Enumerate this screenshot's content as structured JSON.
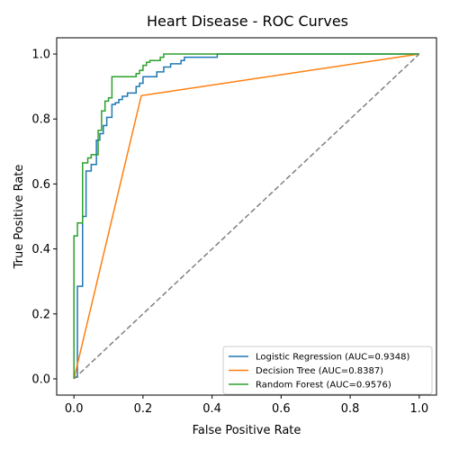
{
  "chart_data": {
    "type": "line",
    "title": "Heart Disease - ROC Curves",
    "xlabel": "False Positive Rate",
    "ylabel": "True Positive Rate",
    "xlim": [
      -0.05,
      1.05
    ],
    "ylim": [
      -0.05,
      1.05
    ],
    "xticks": [
      0.0,
      0.2,
      0.4,
      0.6,
      0.8,
      1.0
    ],
    "xtick_labels": [
      "0.0",
      "0.2",
      "0.4",
      "0.6",
      "0.8",
      "1.0"
    ],
    "yticks": [
      0.0,
      0.2,
      0.4,
      0.6,
      0.8,
      1.0
    ],
    "ytick_labels": [
      "0.0",
      "0.2",
      "0.4",
      "0.6",
      "0.8",
      "1.0"
    ],
    "grid": false,
    "legend_position": "lower-right",
    "series": [
      {
        "name": "Logistic Regression (AUC=0.9348)",
        "color": "#1f77b4",
        "x": [
          0,
          0,
          0.01,
          0.01,
          0.025,
          0.025,
          0.035,
          0.035,
          0.05,
          0.05,
          0.065,
          0.065,
          0.075,
          0.075,
          0.085,
          0.085,
          0.095,
          0.095,
          0.11,
          0.11,
          0.12,
          0.12,
          0.13,
          0.13,
          0.14,
          0.14,
          0.155,
          0.155,
          0.18,
          0.18,
          0.19,
          0.19,
          0.2,
          0.2,
          0.24,
          0.24,
          0.26,
          0.26,
          0.28,
          0.28,
          0.31,
          0.31,
          0.32,
          0.32,
          0.415,
          0.415,
          1.0
        ],
        "y": [
          0,
          0.005,
          0.005,
          0.285,
          0.285,
          0.5,
          0.5,
          0.64,
          0.64,
          0.66,
          0.66,
          0.735,
          0.735,
          0.755,
          0.755,
          0.78,
          0.78,
          0.805,
          0.805,
          0.845,
          0.845,
          0.85,
          0.85,
          0.86,
          0.86,
          0.87,
          0.87,
          0.88,
          0.88,
          0.9,
          0.9,
          0.91,
          0.91,
          0.93,
          0.93,
          0.945,
          0.945,
          0.96,
          0.96,
          0.97,
          0.97,
          0.98,
          0.98,
          0.99,
          0.99,
          1.0,
          1.0
        ]
      },
      {
        "name": "Decision Tree (AUC=0.8387)",
        "color": "#ff7f0e",
        "x": [
          0,
          0.195,
          1.0
        ],
        "y": [
          0,
          0.872,
          1.0
        ]
      },
      {
        "name": "Random Forest (AUC=0.9576)",
        "color": "#2ca02c",
        "x": [
          0,
          0,
          0.01,
          0.01,
          0.025,
          0.025,
          0.04,
          0.04,
          0.05,
          0.05,
          0.07,
          0.07,
          0.08,
          0.08,
          0.09,
          0.09,
          0.1,
          0.1,
          0.11,
          0.11,
          0.18,
          0.18,
          0.19,
          0.19,
          0.2,
          0.2,
          0.21,
          0.21,
          0.22,
          0.22,
          0.25,
          0.25,
          0.26,
          0.26,
          1.0
        ],
        "y": [
          0,
          0.44,
          0.44,
          0.48,
          0.48,
          0.665,
          0.665,
          0.68,
          0.68,
          0.69,
          0.69,
          0.765,
          0.765,
          0.825,
          0.825,
          0.855,
          0.855,
          0.865,
          0.865,
          0.93,
          0.93,
          0.94,
          0.94,
          0.95,
          0.95,
          0.965,
          0.965,
          0.975,
          0.975,
          0.98,
          0.98,
          0.99,
          0.99,
          1.0,
          1.0
        ]
      }
    ],
    "reference_line": {
      "color": "#808080",
      "x": [
        0,
        1
      ],
      "y": [
        0,
        1
      ]
    }
  }
}
